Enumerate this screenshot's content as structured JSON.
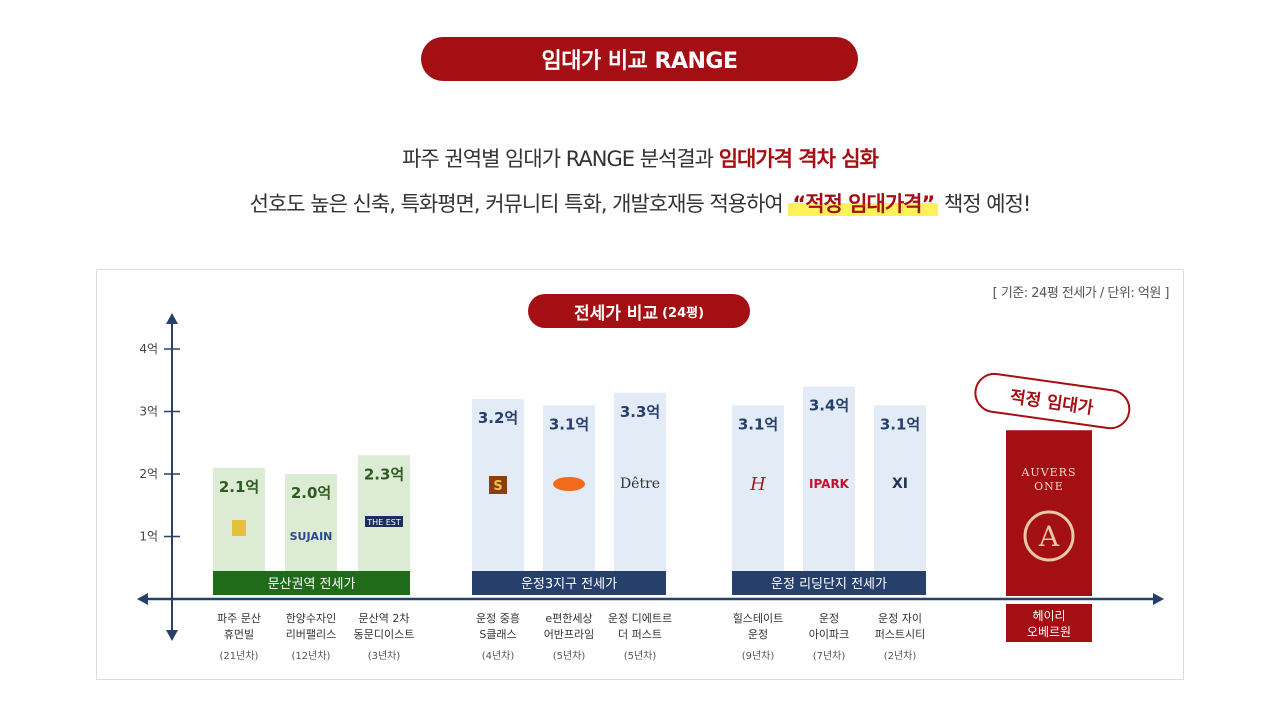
{
  "header": {
    "pill_title": "임대가 비교 RANGE",
    "line1_prefix": "파주 권역별 임대가 RANGE 분석결과",
    "line1_emph": "임대가격 격차 심화",
    "line2_prefix": "선호도 높은 신축, 특화평면, 커뮤니티 특화, 개발호재등 적용하여",
    "line2_emph": "“적정 임대가격”",
    "line2_suffix": "책정 예정!"
  },
  "chart_data": {
    "type": "bar",
    "title": "전세가 비교",
    "title_suffix": "(24평)",
    "basis_note": "[ 기준: 24평 전세가 / 단위: 억원 ]",
    "y_ticks": [
      "1억",
      "2억",
      "3억",
      "4억"
    ],
    "ylim": [
      0,
      4.5
    ],
    "groups": [
      {
        "name": "문산권역 전세가",
        "color": "#1f6b1a",
        "bar_color": "#dcebd3"
      },
      {
        "name": "운정3지구 전세가",
        "color": "#26406b",
        "bar_color": "#e3ebf7"
      },
      {
        "name": "운정 리딩단지 전세가",
        "color": "#26406b",
        "bar_color": "#e3ebf7"
      }
    ],
    "bars": [
      {
        "group": 0,
        "value": 2.1,
        "label": "2.1억",
        "name1": "파주 문산",
        "name2": "휴먼빌",
        "year": "(21년차)",
        "logo": "h"
      },
      {
        "group": 0,
        "value": 2.0,
        "label": "2.0억",
        "name1": "한양수자인",
        "name2": "리버팰리스",
        "year": "(12년차)",
        "logo": "SUJAIN"
      },
      {
        "group": 0,
        "value": 2.3,
        "label": "2.3억",
        "name1": "문산역 2차",
        "name2": "동문디이스트",
        "year": "(3년차)",
        "logo": "THE EST"
      },
      {
        "group": 1,
        "value": 3.2,
        "label": "3.2억",
        "name1": "운정 중흥",
        "name2": "S클래스",
        "year": "(4년차)",
        "logo": "S"
      },
      {
        "group": 1,
        "value": 3.1,
        "label": "3.1억",
        "name1": "e편한세상",
        "name2": "어반프라임",
        "year": "(5년차)",
        "logo": "e"
      },
      {
        "group": 1,
        "value": 3.3,
        "label": "3.3억",
        "name1": "운정 디에트르",
        "name2": "더 퍼스트",
        "year": "(5년차)",
        "logo": "Dêtre"
      },
      {
        "group": 2,
        "value": 3.1,
        "label": "3.1억",
        "name1": "힐스테이트",
        "name2": "운정",
        "year": "(9년차)",
        "logo": "H"
      },
      {
        "group": 2,
        "value": 3.4,
        "label": "3.4억",
        "name1": "운정",
        "name2": "아이파크",
        "year": "(7년차)",
        "logo": "IPARK"
      },
      {
        "group": 2,
        "value": 3.1,
        "label": "3.1억",
        "name1": "운정 자이",
        "name2": "퍼스트시티",
        "year": "(2년차)",
        "logo": "XI"
      }
    ],
    "target": {
      "stamp": "적정 임대가",
      "brand1": "AUVERS",
      "brand2": "ONE",
      "name1": "헤이리",
      "name2": "오베르원",
      "color": "#a30f12",
      "value": 2.7
    }
  }
}
